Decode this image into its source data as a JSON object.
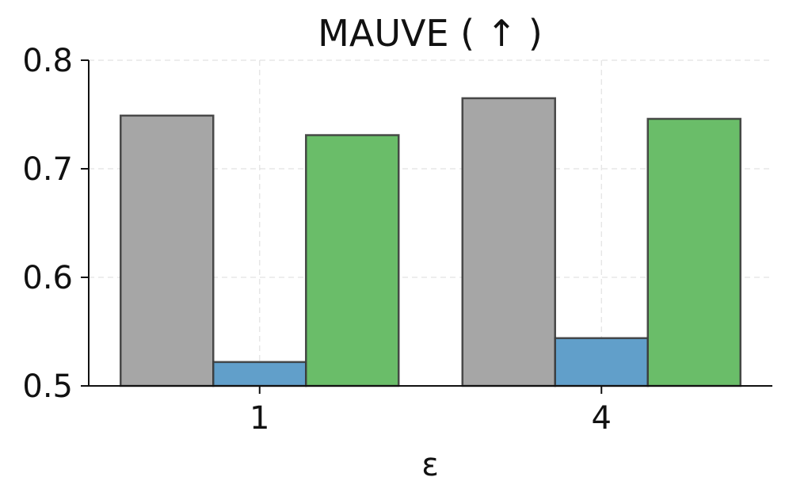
{
  "chart_data": {
    "type": "bar",
    "title": "MAUVE ( ↑ )",
    "xlabel": "ε",
    "ylabel": "",
    "categories": [
      "1",
      "4"
    ],
    "ylim": [
      0.5,
      0.8
    ],
    "yticks": [
      "0.5",
      "0.6",
      "0.7",
      "0.8"
    ],
    "grid": true,
    "legend": "none",
    "series": [
      {
        "values": [
          0.749,
          0.765
        ],
        "color": "#a6a6a6"
      },
      {
        "values": [
          0.522,
          0.544
        ],
        "color": "#619fca"
      },
      {
        "values": [
          0.731,
          0.746
        ],
        "color": "#6abd69"
      }
    ]
  }
}
